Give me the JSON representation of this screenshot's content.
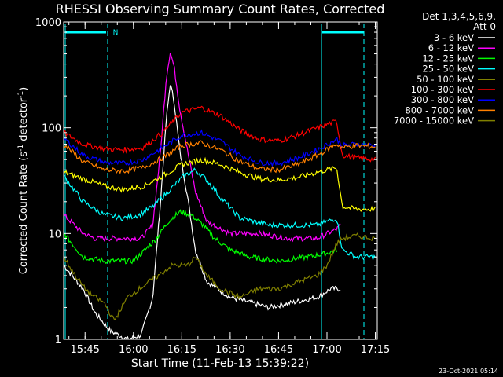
{
  "chart_data": {
    "type": "line",
    "title": "RHESSI Observing Summary Count Rates, Corrected",
    "xlabel": "Start Time (11-Feb-13 15:39:22)",
    "ylabel_main": "Corrected Count Rate (s",
    "ylabel_sup1": "-1",
    "ylabel_mid": " detector",
    "ylabel_sup2": "-1",
    "ylabel_end": ")",
    "yscale": "log",
    "ylim": [
      1,
      1000
    ],
    "xlim": [
      15.6394,
      17.26
    ],
    "x_ticks": [
      {
        "value": 15.75,
        "label": "15:45"
      },
      {
        "value": 16.0,
        "label": "16:00"
      },
      {
        "value": 16.25,
        "label": "16:15"
      },
      {
        "value": 16.5,
        "label": "16:30"
      },
      {
        "value": 16.75,
        "label": "16:45"
      },
      {
        "value": 17.0,
        "label": "17:00"
      },
      {
        "value": 17.25,
        "label": "17:15"
      }
    ],
    "y_ticks": [
      {
        "value": 1,
        "label": "1"
      },
      {
        "value": 10,
        "label": "10"
      },
      {
        "value": 100,
        "label": "100"
      },
      {
        "value": 1000,
        "label": "1000"
      }
    ],
    "legend_header": [
      "Det 1,3,4,5,6,9,",
      "Att 0"
    ],
    "legend_position": "top-right",
    "flag_label": "N",
    "timestamp": "23-Oct-2021 05:14",
    "series": [
      {
        "name": "3 - 6 keV",
        "color": "#ffffff",
        "x": [
          15.64,
          15.74,
          15.8,
          15.88,
          15.97,
          16.04,
          16.1,
          16.14,
          16.17,
          16.19,
          16.21,
          16.24,
          16.28,
          16.32,
          16.38,
          16.5,
          16.7,
          16.95,
          17.02,
          17.07
        ],
        "y": [
          5,
          3,
          1.8,
          1.2,
          1,
          1.1,
          2.5,
          20,
          120,
          260,
          180,
          60,
          22,
          7,
          3.5,
          2.5,
          2,
          2.5,
          3,
          3
        ]
      },
      {
        "name": "6 - 12 keV",
        "color": "#ff00ff",
        "x": [
          15.64,
          15.74,
          15.8,
          15.88,
          15.97,
          16.04,
          16.1,
          16.14,
          16.17,
          16.19,
          16.21,
          16.24,
          16.28,
          16.32,
          16.38,
          16.5,
          16.65,
          16.8,
          16.95,
          17.05,
          17.07
        ],
        "y": [
          15,
          10,
          9,
          9,
          9,
          9,
          12,
          60,
          300,
          520,
          380,
          150,
          60,
          25,
          13,
          10,
          10,
          9,
          9,
          11,
          12
        ]
      },
      {
        "name": "12 - 25 keV",
        "color": "#00ff00",
        "x": [
          15.64,
          15.74,
          15.85,
          16.0,
          16.06,
          16.12,
          16.18,
          16.24,
          16.3,
          16.36,
          16.42,
          16.5,
          16.6,
          16.75,
          16.9,
          17.0,
          17.05
        ],
        "y": [
          10,
          6,
          5.5,
          5.5,
          7,
          9,
          13,
          16,
          15,
          12,
          9,
          7,
          6,
          5.5,
          6,
          6.5,
          7
        ]
      },
      {
        "name": "25 - 50 keV",
        "color": "#00ffff",
        "x": [
          15.64,
          15.74,
          15.85,
          15.95,
          16.03,
          16.1,
          16.18,
          16.26,
          16.32,
          16.38,
          16.45,
          16.55,
          16.7,
          16.85,
          16.95,
          17.05,
          17.08,
          17.15,
          17.25
        ],
        "y": [
          35,
          20,
          15,
          14,
          15,
          18,
          25,
          35,
          40,
          32,
          22,
          14,
          12,
          12,
          12,
          14,
          7,
          6,
          6
        ]
      },
      {
        "name": "50 - 100 keV",
        "color": "#ffff00",
        "x": [
          15.64,
          15.74,
          15.85,
          15.95,
          16.05,
          16.15,
          16.25,
          16.35,
          16.45,
          16.55,
          16.65,
          16.75,
          16.85,
          16.95,
          17.05,
          17.08,
          17.15,
          17.25
        ],
        "y": [
          38,
          33,
          28,
          26,
          28,
          35,
          45,
          50,
          45,
          38,
          33,
          32,
          34,
          38,
          42,
          18,
          17,
          17
        ]
      },
      {
        "name": "100 - 300 keV",
        "color": "#ff0000",
        "x": [
          15.64,
          15.74,
          15.85,
          15.95,
          16.05,
          16.15,
          16.25,
          16.35,
          16.45,
          16.55,
          16.65,
          16.75,
          16.85,
          16.95,
          17.05,
          17.08,
          17.15,
          17.25
        ],
        "y": [
          90,
          70,
          63,
          62,
          65,
          90,
          140,
          155,
          130,
          95,
          78,
          75,
          85,
          100,
          115,
          55,
          52,
          50
        ]
      },
      {
        "name": "300 - 800 keV",
        "color": "#0000ff",
        "x": [
          15.64,
          15.74,
          15.85,
          15.95,
          16.05,
          16.15,
          16.25,
          16.35,
          16.45,
          16.55,
          16.65,
          16.75,
          16.85,
          16.95,
          17.05,
          17.08,
          17.15,
          17.25
        ],
        "y": [
          80,
          55,
          47,
          46,
          50,
          65,
          85,
          90,
          75,
          55,
          47,
          46,
          52,
          62,
          78,
          68,
          70,
          68
        ]
      },
      {
        "name": "800 - 7000 keV",
        "color": "#ff8000",
        "x": [
          15.64,
          15.74,
          15.85,
          15.95,
          16.05,
          16.15,
          16.25,
          16.35,
          16.45,
          16.55,
          16.65,
          16.75,
          16.85,
          16.95,
          17.05,
          17.08,
          17.15,
          17.25
        ],
        "y": [
          70,
          48,
          40,
          39,
          42,
          52,
          68,
          72,
          62,
          48,
          41,
          40,
          45,
          55,
          70,
          65,
          68,
          66
        ]
      },
      {
        "name": "7000 - 15000 keV",
        "color": "#808000",
        "x": [
          15.64,
          15.7,
          15.75,
          15.8,
          15.85,
          15.9,
          15.97,
          16.03,
          16.08,
          16.13,
          16.2,
          16.28,
          16.32,
          16.38,
          16.45,
          16.55,
          16.65,
          16.75,
          16.85,
          16.95,
          17.0,
          17.05,
          17.08,
          17.15,
          17.25
        ],
        "y": [
          6,
          4,
          3,
          2.5,
          2.2,
          1.5,
          2.5,
          3,
          3.5,
          4,
          5,
          5,
          6,
          4,
          3,
          2.5,
          3,
          3,
          3.5,
          4,
          5,
          8,
          9,
          9.5,
          9
        ]
      }
    ]
  }
}
